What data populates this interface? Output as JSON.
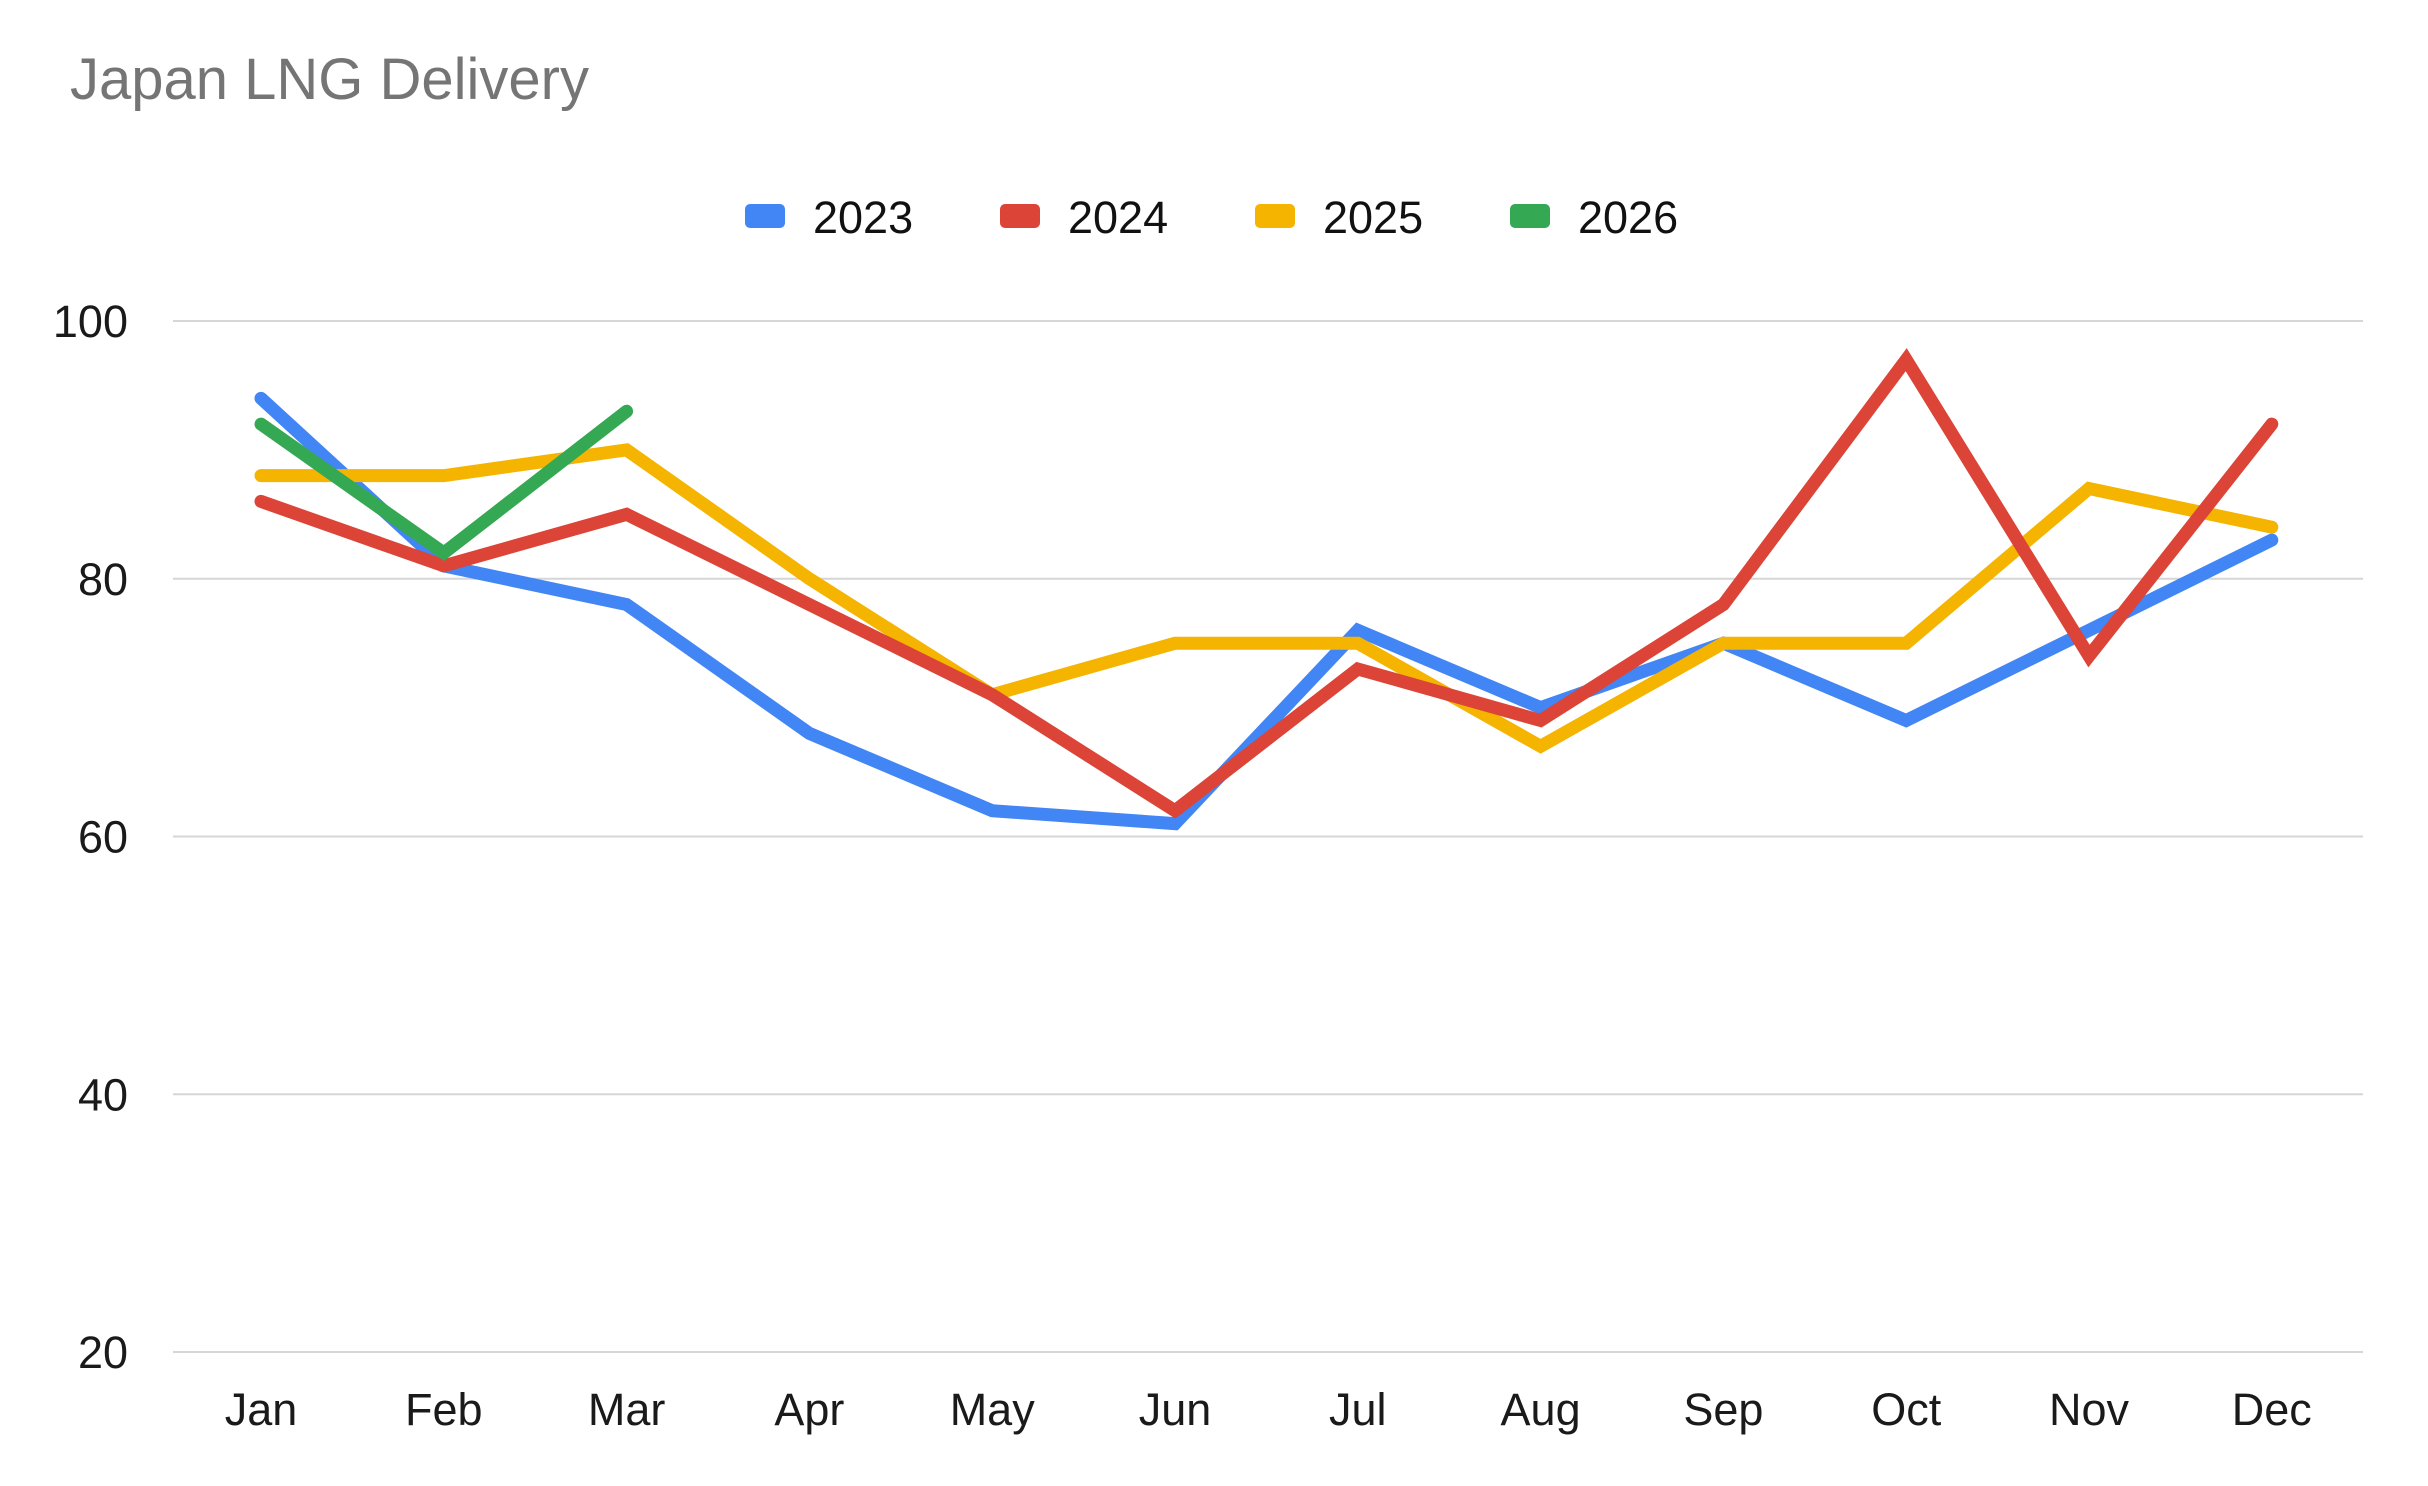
{
  "chart_data": {
    "type": "line",
    "title": "Japan LNG Delivery",
    "categories": [
      "Jan",
      "Feb",
      "Mar",
      "Apr",
      "May",
      "Jun",
      "Jul",
      "Aug",
      "Sep",
      "Oct",
      "Nov",
      "Dec"
    ],
    "series": [
      {
        "name": "2023",
        "color": "#4285F4",
        "values": [
          94,
          81,
          78,
          68,
          62,
          61,
          76,
          70,
          75,
          69,
          76,
          83
        ]
      },
      {
        "name": "2024",
        "color": "#DB4437",
        "values": [
          86,
          81,
          85,
          78,
          71,
          62,
          73,
          69,
          78,
          97,
          74,
          92
        ]
      },
      {
        "name": "2025",
        "color": "#F4B400",
        "values": [
          88,
          88,
          90,
          80,
          71,
          75,
          75,
          67,
          75,
          75,
          87,
          84
        ]
      },
      {
        "name": "2026",
        "color": "#34A853",
        "values": [
          92,
          82,
          93,
          null,
          null,
          null,
          null,
          null,
          null,
          null,
          null,
          null
        ]
      }
    ],
    "ylim": [
      20,
      100
    ],
    "yticks": [
      20,
      40,
      60,
      80,
      100
    ],
    "grid": true,
    "legend_position": "top",
    "xlabel": "",
    "ylabel": ""
  },
  "style": {
    "gridline_color": "#d6d6d6",
    "axis_label_color": "#1a1a1a",
    "title_color": "#757575",
    "background": "#ffffff"
  }
}
